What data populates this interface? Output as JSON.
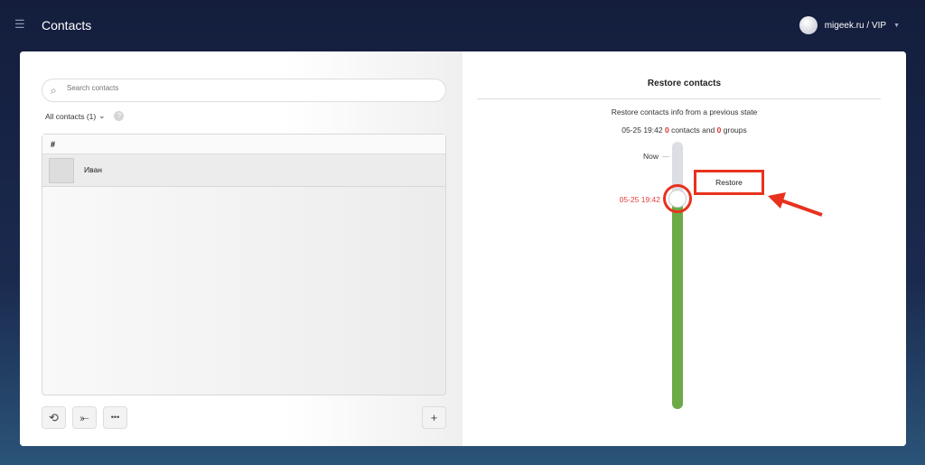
{
  "header": {
    "title": "Contacts",
    "user": "migeek.ru / VIP"
  },
  "left": {
    "search_placeholder": "Search contacts",
    "filter_label": "All contacts (1)",
    "filter_caret": "⌄",
    "help": "?",
    "list_header": "#",
    "contacts": [
      {
        "name": "Иван"
      }
    ],
    "buttons": {
      "history": "⟲",
      "merge": "⤜",
      "more": "•••",
      "add": "+"
    }
  },
  "right": {
    "title": "Restore contacts",
    "subtitle": "Restore contacts info from a previous state",
    "snapshot": {
      "date": "05-25 19:42",
      "contacts": "0",
      "contacts_label": "contacts and",
      "groups": "0",
      "groups_label": "groups"
    },
    "slider": {
      "top_label": "Now",
      "selected_label": "05-25 19:42",
      "fill_fraction": 0.78
    },
    "restore_button": "Restore"
  },
  "colors": {
    "accent": "#e8321e",
    "slider_fill": "#6aaa47",
    "header_bg": "#141d3c"
  }
}
